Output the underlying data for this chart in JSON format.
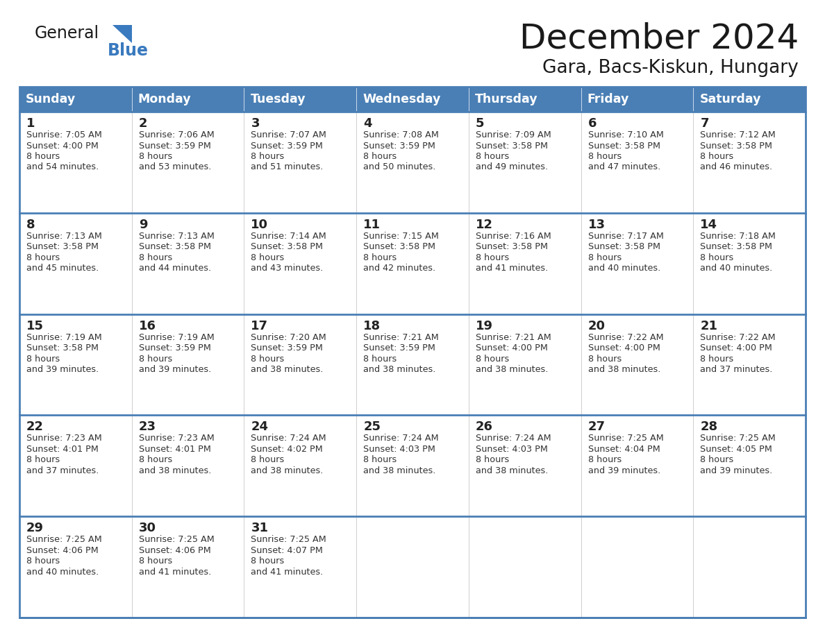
{
  "title": "December 2024",
  "subtitle": "Gara, Bacs-Kiskun, Hungary",
  "days_of_week": [
    "Sunday",
    "Monday",
    "Tuesday",
    "Wednesday",
    "Thursday",
    "Friday",
    "Saturday"
  ],
  "header_bg": "#4a7fb5",
  "header_text": "#ffffff",
  "cell_bg": "#ffffff",
  "row_separator_color": "#4a7fb5",
  "col_separator_color": "#cccccc",
  "outer_border_color": "#4a7fb5",
  "title_color": "#1a1a1a",
  "subtitle_color": "#1a1a1a",
  "day_num_color": "#222222",
  "cell_text_color": "#333333",
  "logo_general_color": "#1a1a1a",
  "logo_blue_color": "#3a7abf",
  "logo_triangle_color": "#3a7abf",
  "calendar_data": [
    [
      {
        "day": 1,
        "sunrise": "7:05 AM",
        "sunset": "4:00 PM",
        "daylight": "8 hours and 54 minutes."
      },
      {
        "day": 2,
        "sunrise": "7:06 AM",
        "sunset": "3:59 PM",
        "daylight": "8 hours and 53 minutes."
      },
      {
        "day": 3,
        "sunrise": "7:07 AM",
        "sunset": "3:59 PM",
        "daylight": "8 hours and 51 minutes."
      },
      {
        "day": 4,
        "sunrise": "7:08 AM",
        "sunset": "3:59 PM",
        "daylight": "8 hours and 50 minutes."
      },
      {
        "day": 5,
        "sunrise": "7:09 AM",
        "sunset": "3:58 PM",
        "daylight": "8 hours and 49 minutes."
      },
      {
        "day": 6,
        "sunrise": "7:10 AM",
        "sunset": "3:58 PM",
        "daylight": "8 hours and 47 minutes."
      },
      {
        "day": 7,
        "sunrise": "7:12 AM",
        "sunset": "3:58 PM",
        "daylight": "8 hours and 46 minutes."
      }
    ],
    [
      {
        "day": 8,
        "sunrise": "7:13 AM",
        "sunset": "3:58 PM",
        "daylight": "8 hours and 45 minutes."
      },
      {
        "day": 9,
        "sunrise": "7:13 AM",
        "sunset": "3:58 PM",
        "daylight": "8 hours and 44 minutes."
      },
      {
        "day": 10,
        "sunrise": "7:14 AM",
        "sunset": "3:58 PM",
        "daylight": "8 hours and 43 minutes."
      },
      {
        "day": 11,
        "sunrise": "7:15 AM",
        "sunset": "3:58 PM",
        "daylight": "8 hours and 42 minutes."
      },
      {
        "day": 12,
        "sunrise": "7:16 AM",
        "sunset": "3:58 PM",
        "daylight": "8 hours and 41 minutes."
      },
      {
        "day": 13,
        "sunrise": "7:17 AM",
        "sunset": "3:58 PM",
        "daylight": "8 hours and 40 minutes."
      },
      {
        "day": 14,
        "sunrise": "7:18 AM",
        "sunset": "3:58 PM",
        "daylight": "8 hours and 40 minutes."
      }
    ],
    [
      {
        "day": 15,
        "sunrise": "7:19 AM",
        "sunset": "3:58 PM",
        "daylight": "8 hours and 39 minutes."
      },
      {
        "day": 16,
        "sunrise": "7:19 AM",
        "sunset": "3:59 PM",
        "daylight": "8 hours and 39 minutes."
      },
      {
        "day": 17,
        "sunrise": "7:20 AM",
        "sunset": "3:59 PM",
        "daylight": "8 hours and 38 minutes."
      },
      {
        "day": 18,
        "sunrise": "7:21 AM",
        "sunset": "3:59 PM",
        "daylight": "8 hours and 38 minutes."
      },
      {
        "day": 19,
        "sunrise": "7:21 AM",
        "sunset": "4:00 PM",
        "daylight": "8 hours and 38 minutes."
      },
      {
        "day": 20,
        "sunrise": "7:22 AM",
        "sunset": "4:00 PM",
        "daylight": "8 hours and 38 minutes."
      },
      {
        "day": 21,
        "sunrise": "7:22 AM",
        "sunset": "4:00 PM",
        "daylight": "8 hours and 37 minutes."
      }
    ],
    [
      {
        "day": 22,
        "sunrise": "7:23 AM",
        "sunset": "4:01 PM",
        "daylight": "8 hours and 37 minutes."
      },
      {
        "day": 23,
        "sunrise": "7:23 AM",
        "sunset": "4:01 PM",
        "daylight": "8 hours and 38 minutes."
      },
      {
        "day": 24,
        "sunrise": "7:24 AM",
        "sunset": "4:02 PM",
        "daylight": "8 hours and 38 minutes."
      },
      {
        "day": 25,
        "sunrise": "7:24 AM",
        "sunset": "4:03 PM",
        "daylight": "8 hours and 38 minutes."
      },
      {
        "day": 26,
        "sunrise": "7:24 AM",
        "sunset": "4:03 PM",
        "daylight": "8 hours and 38 minutes."
      },
      {
        "day": 27,
        "sunrise": "7:25 AM",
        "sunset": "4:04 PM",
        "daylight": "8 hours and 39 minutes."
      },
      {
        "day": 28,
        "sunrise": "7:25 AM",
        "sunset": "4:05 PM",
        "daylight": "8 hours and 39 minutes."
      }
    ],
    [
      {
        "day": 29,
        "sunrise": "7:25 AM",
        "sunset": "4:06 PM",
        "daylight": "8 hours and 40 minutes."
      },
      {
        "day": 30,
        "sunrise": "7:25 AM",
        "sunset": "4:06 PM",
        "daylight": "8 hours and 41 minutes."
      },
      {
        "day": 31,
        "sunrise": "7:25 AM",
        "sunset": "4:07 PM",
        "daylight": "8 hours and 41 minutes."
      },
      null,
      null,
      null,
      null
    ]
  ]
}
